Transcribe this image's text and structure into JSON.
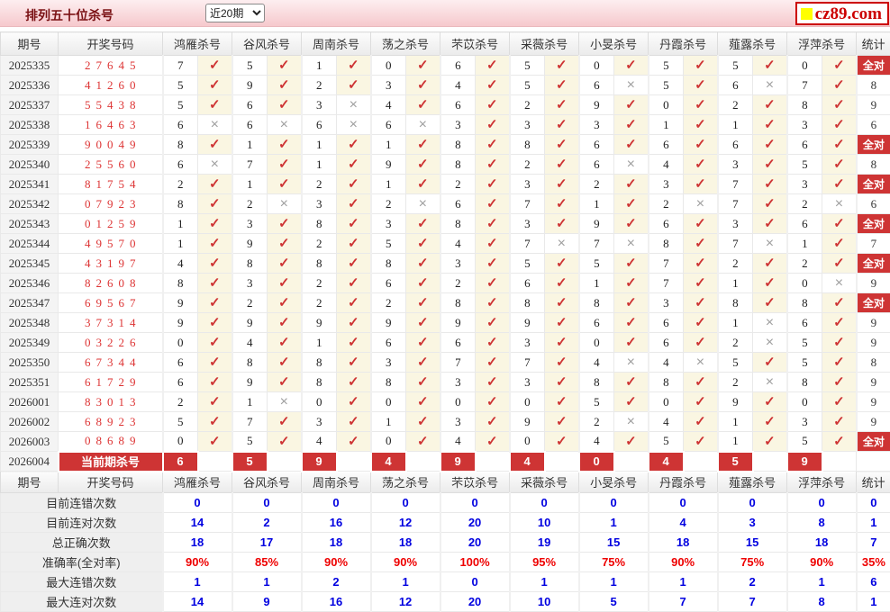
{
  "topbar": {
    "title": "排列五十位杀号",
    "range_value": "近20期",
    "logo_text": "cz89.com"
  },
  "table": {
    "headers": [
      "期号",
      "开奖号码",
      "鸿雁杀号",
      "谷风杀号",
      "周南杀号",
      "荡之杀号",
      "芣苡杀号",
      "采薇杀号",
      "小旻杀号",
      "丹霞杀号",
      "薤露杀号",
      "浮萍杀号",
      "统计"
    ],
    "marks": {
      "correct": "✓",
      "wrong": "×"
    },
    "all_correct_label": "全对",
    "rows": [
      {
        "period": "2025335",
        "code": "27645",
        "kills": [
          [
            "7",
            1
          ],
          [
            "5",
            1
          ],
          [
            "1",
            1
          ],
          [
            "0",
            1
          ],
          [
            "6",
            1
          ],
          [
            "5",
            1
          ],
          [
            "0",
            1
          ],
          [
            "5",
            1
          ],
          [
            "5",
            1
          ],
          [
            "0",
            1
          ]
        ],
        "stat": "全对"
      },
      {
        "period": "2025336",
        "code": "41260",
        "kills": [
          [
            "5",
            1
          ],
          [
            "9",
            1
          ],
          [
            "2",
            1
          ],
          [
            "3",
            1
          ],
          [
            "4",
            1
          ],
          [
            "5",
            1
          ],
          [
            "6",
            0
          ],
          [
            "5",
            1
          ],
          [
            "6",
            0
          ],
          [
            "7",
            1
          ]
        ],
        "stat": "8"
      },
      {
        "period": "2025337",
        "code": "55438",
        "kills": [
          [
            "5",
            1
          ],
          [
            "6",
            1
          ],
          [
            "3",
            0
          ],
          [
            "4",
            1
          ],
          [
            "6",
            1
          ],
          [
            "2",
            1
          ],
          [
            "9",
            1
          ],
          [
            "0",
            1
          ],
          [
            "2",
            1
          ],
          [
            "8",
            1
          ]
        ],
        "stat": "9"
      },
      {
        "period": "2025338",
        "code": "16463",
        "kills": [
          [
            "6",
            0
          ],
          [
            "6",
            0
          ],
          [
            "6",
            0
          ],
          [
            "6",
            0
          ],
          [
            "3",
            1
          ],
          [
            "3",
            1
          ],
          [
            "3",
            1
          ],
          [
            "1",
            1
          ],
          [
            "1",
            1
          ],
          [
            "3",
            1
          ]
        ],
        "stat": "6"
      },
      {
        "period": "2025339",
        "code": "90049",
        "kills": [
          [
            "8",
            1
          ],
          [
            "1",
            1
          ],
          [
            "1",
            1
          ],
          [
            "1",
            1
          ],
          [
            "8",
            1
          ],
          [
            "8",
            1
          ],
          [
            "6",
            1
          ],
          [
            "6",
            1
          ],
          [
            "6",
            1
          ],
          [
            "6",
            1
          ]
        ],
        "stat": "全对"
      },
      {
        "period": "2025340",
        "code": "25560",
        "kills": [
          [
            "6",
            0
          ],
          [
            "7",
            1
          ],
          [
            "1",
            1
          ],
          [
            "9",
            1
          ],
          [
            "8",
            1
          ],
          [
            "2",
            1
          ],
          [
            "6",
            0
          ],
          [
            "4",
            1
          ],
          [
            "3",
            1
          ],
          [
            "5",
            1
          ]
        ],
        "stat": "8"
      },
      {
        "period": "2025341",
        "code": "81754",
        "kills": [
          [
            "2",
            1
          ],
          [
            "1",
            1
          ],
          [
            "2",
            1
          ],
          [
            "1",
            1
          ],
          [
            "2",
            1
          ],
          [
            "3",
            1
          ],
          [
            "2",
            1
          ],
          [
            "3",
            1
          ],
          [
            "7",
            1
          ],
          [
            "3",
            1
          ]
        ],
        "stat": "全对"
      },
      {
        "period": "2025342",
        "code": "07923",
        "kills": [
          [
            "8",
            1
          ],
          [
            "2",
            0
          ],
          [
            "3",
            1
          ],
          [
            "2",
            0
          ],
          [
            "6",
            1
          ],
          [
            "7",
            1
          ],
          [
            "1",
            1
          ],
          [
            "2",
            0
          ],
          [
            "7",
            1
          ],
          [
            "2",
            0
          ]
        ],
        "stat": "6"
      },
      {
        "period": "2025343",
        "code": "01259",
        "kills": [
          [
            "1",
            1
          ],
          [
            "3",
            1
          ],
          [
            "8",
            1
          ],
          [
            "3",
            1
          ],
          [
            "8",
            1
          ],
          [
            "3",
            1
          ],
          [
            "9",
            1
          ],
          [
            "6",
            1
          ],
          [
            "3",
            1
          ],
          [
            "6",
            1
          ]
        ],
        "stat": "全对"
      },
      {
        "period": "2025344",
        "code": "49570",
        "kills": [
          [
            "1",
            1
          ],
          [
            "9",
            1
          ],
          [
            "2",
            1
          ],
          [
            "5",
            1
          ],
          [
            "4",
            1
          ],
          [
            "7",
            0
          ],
          [
            "7",
            0
          ],
          [
            "8",
            1
          ],
          [
            "7",
            0
          ],
          [
            "1",
            1
          ]
        ],
        "stat": "7"
      },
      {
        "period": "2025345",
        "code": "43197",
        "kills": [
          [
            "4",
            1
          ],
          [
            "8",
            1
          ],
          [
            "8",
            1
          ],
          [
            "8",
            1
          ],
          [
            "3",
            1
          ],
          [
            "5",
            1
          ],
          [
            "5",
            1
          ],
          [
            "7",
            1
          ],
          [
            "2",
            1
          ],
          [
            "2",
            1
          ]
        ],
        "stat": "全对"
      },
      {
        "period": "2025346",
        "code": "82608",
        "kills": [
          [
            "8",
            1
          ],
          [
            "3",
            1
          ],
          [
            "2",
            1
          ],
          [
            "6",
            1
          ],
          [
            "2",
            1
          ],
          [
            "6",
            1
          ],
          [
            "1",
            1
          ],
          [
            "7",
            1
          ],
          [
            "1",
            1
          ],
          [
            "0",
            0
          ]
        ],
        "stat": "9"
      },
      {
        "period": "2025347",
        "code": "69567",
        "kills": [
          [
            "9",
            1
          ],
          [
            "2",
            1
          ],
          [
            "2",
            1
          ],
          [
            "2",
            1
          ],
          [
            "8",
            1
          ],
          [
            "8",
            1
          ],
          [
            "8",
            1
          ],
          [
            "3",
            1
          ],
          [
            "8",
            1
          ],
          [
            "8",
            1
          ]
        ],
        "stat": "全对"
      },
      {
        "period": "2025348",
        "code": "37314",
        "kills": [
          [
            "9",
            1
          ],
          [
            "9",
            1
          ],
          [
            "9",
            1
          ],
          [
            "9",
            1
          ],
          [
            "9",
            1
          ],
          [
            "9",
            1
          ],
          [
            "6",
            1
          ],
          [
            "6",
            1
          ],
          [
            "1",
            0
          ],
          [
            "6",
            1
          ]
        ],
        "stat": "9"
      },
      {
        "period": "2025349",
        "code": "03226",
        "kills": [
          [
            "0",
            1
          ],
          [
            "4",
            1
          ],
          [
            "1",
            1
          ],
          [
            "6",
            1
          ],
          [
            "6",
            1
          ],
          [
            "3",
            1
          ],
          [
            "0",
            1
          ],
          [
            "6",
            1
          ],
          [
            "2",
            0
          ],
          [
            "5",
            1
          ]
        ],
        "stat": "9"
      },
      {
        "period": "2025350",
        "code": "67344",
        "kills": [
          [
            "6",
            1
          ],
          [
            "8",
            1
          ],
          [
            "8",
            1
          ],
          [
            "3",
            1
          ],
          [
            "7",
            1
          ],
          [
            "7",
            1
          ],
          [
            "4",
            0
          ],
          [
            "4",
            0
          ],
          [
            "5",
            1
          ],
          [
            "5",
            1
          ]
        ],
        "stat": "8"
      },
      {
        "period": "2025351",
        "code": "61729",
        "kills": [
          [
            "6",
            1
          ],
          [
            "9",
            1
          ],
          [
            "8",
            1
          ],
          [
            "8",
            1
          ],
          [
            "3",
            1
          ],
          [
            "3",
            1
          ],
          [
            "8",
            1
          ],
          [
            "8",
            1
          ],
          [
            "2",
            0
          ],
          [
            "8",
            1
          ]
        ],
        "stat": "9"
      },
      {
        "period": "2026001",
        "code": "83013",
        "kills": [
          [
            "2",
            1
          ],
          [
            "1",
            0
          ],
          [
            "0",
            1
          ],
          [
            "0",
            1
          ],
          [
            "0",
            1
          ],
          [
            "0",
            1
          ],
          [
            "5",
            1
          ],
          [
            "0",
            1
          ],
          [
            "9",
            1
          ],
          [
            "0",
            1
          ]
        ],
        "stat": "9"
      },
      {
        "period": "2026002",
        "code": "68923",
        "kills": [
          [
            "5",
            1
          ],
          [
            "7",
            1
          ],
          [
            "3",
            1
          ],
          [
            "1",
            1
          ],
          [
            "3",
            1
          ],
          [
            "9",
            1
          ],
          [
            "2",
            0
          ],
          [
            "4",
            1
          ],
          [
            "1",
            1
          ],
          [
            "3",
            1
          ]
        ],
        "stat": "9"
      },
      {
        "period": "2026003",
        "code": "08689",
        "kills": [
          [
            "0",
            1
          ],
          [
            "5",
            1
          ],
          [
            "4",
            1
          ],
          [
            "0",
            1
          ],
          [
            "4",
            1
          ],
          [
            "0",
            1
          ],
          [
            "4",
            1
          ],
          [
            "5",
            1
          ],
          [
            "1",
            1
          ],
          [
            "5",
            1
          ]
        ],
        "stat": "全对"
      }
    ],
    "current_row": {
      "period": "2026004",
      "label": "当前期杀号",
      "kills": [
        "6",
        "5",
        "9",
        "4",
        "9",
        "4",
        "0",
        "4",
        "5",
        "9"
      ]
    },
    "summary_rows": [
      {
        "label": "目前连错次数",
        "values": [
          "0",
          "0",
          "0",
          "0",
          "0",
          "0",
          "0",
          "0",
          "0",
          "0"
        ],
        "stat": "0",
        "style": "blue"
      },
      {
        "label": "目前连对次数",
        "values": [
          "14",
          "2",
          "16",
          "12",
          "20",
          "10",
          "1",
          "4",
          "3",
          "8"
        ],
        "stat": "1",
        "style": "blue"
      },
      {
        "label": "总正确次数",
        "values": [
          "18",
          "17",
          "18",
          "18",
          "20",
          "19",
          "15",
          "18",
          "15",
          "18"
        ],
        "stat": "7",
        "style": "blue"
      },
      {
        "label": "准确率(全对率)",
        "values": [
          "90%",
          "85%",
          "90%",
          "90%",
          "100%",
          "95%",
          "75%",
          "90%",
          "75%",
          "90%"
        ],
        "stat": "35%",
        "style": "red"
      },
      {
        "label": "最大连错次数",
        "values": [
          "1",
          "1",
          "2",
          "1",
          "0",
          "1",
          "1",
          "1",
          "2",
          "1"
        ],
        "stat": "6",
        "style": "blue"
      },
      {
        "label": "最大连对次数",
        "values": [
          "14",
          "9",
          "16",
          "12",
          "20",
          "10",
          "5",
          "7",
          "7",
          "8"
        ],
        "stat": "1",
        "style": "blue"
      }
    ],
    "colors": {
      "accent_red": "#ce3434",
      "value_blue": "#0000e0",
      "value_red": "#ee0000"
    }
  }
}
